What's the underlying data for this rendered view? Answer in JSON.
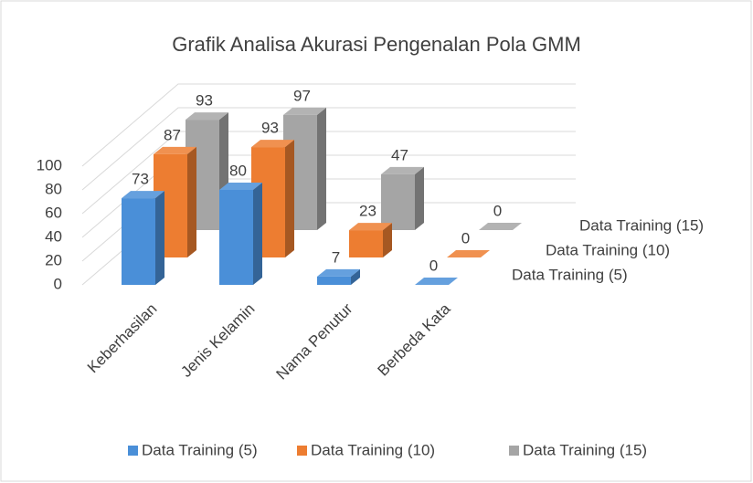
{
  "chart_data": {
    "type": "bar3d",
    "title": "Grafik Analisa Akurasi Pengenalan Pola GMM",
    "categories": [
      "Keberhasilan",
      "Jenis Kelamin",
      "Nama Penutur",
      "Berbeda Kata"
    ],
    "series": [
      {
        "name": "Data Training (5)",
        "color": "#4a8fd8",
        "values": [
          73,
          80,
          7,
          0
        ]
      },
      {
        "name": "Data Training (10)",
        "color": "#ed7d31",
        "values": [
          87,
          93,
          23,
          0
        ]
      },
      {
        "name": "Data Training (15)",
        "color": "#a5a5a5",
        "values": [
          93,
          97,
          47,
          0
        ]
      }
    ],
    "ylim": [
      0,
      100
    ],
    "yticks": [
      0,
      20,
      40,
      60,
      80,
      100
    ],
    "grid": true,
    "legend": "bottom"
  }
}
